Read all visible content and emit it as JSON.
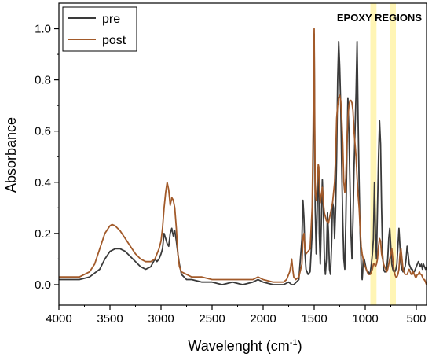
{
  "chart_data": {
    "type": "line",
    "title": "",
    "xlabel": "Wavelenght (cm",
    "xlabel_sup": "-1",
    "xlabel_end": ")",
    "ylabel": "Absorbance",
    "xlim": [
      4000,
      400
    ],
    "ylim": [
      -0.08,
      1.1
    ],
    "x_reversed": true,
    "grid": false,
    "legend_position": "top-left",
    "annotation": "EPOXY REGIONS",
    "highlight_color": "#fff3a8",
    "highlight_bands": [
      [
        950,
        890
      ],
      [
        760,
        700
      ]
    ],
    "x_ticks": [
      4000,
      3500,
      3000,
      2500,
      2000,
      1500,
      1000,
      500
    ],
    "y_ticks": [
      0.0,
      0.2,
      0.4,
      0.6,
      0.8,
      1.0
    ],
    "x_tick_labels": [
      "4000",
      "3500",
      "3000",
      "2500",
      "2000",
      "1500",
      "1000",
      "500"
    ],
    "y_tick_labels": [
      "0.0",
      "0.2",
      "0.4",
      "0.6",
      "0.8",
      "1.0"
    ],
    "series": [
      {
        "name": "pre",
        "color": "#3a3a3a",
        "x": [
          4000,
          3800,
          3700,
          3600,
          3550,
          3500,
          3450,
          3400,
          3350,
          3300,
          3250,
          3200,
          3150,
          3100,
          3060,
          3040,
          3020,
          3000,
          2985,
          2970,
          2955,
          2940,
          2925,
          2910,
          2895,
          2880,
          2865,
          2850,
          2835,
          2820,
          2800,
          2750,
          2700,
          2600,
          2500,
          2400,
          2300,
          2200,
          2100,
          2050,
          2000,
          1900,
          1800,
          1750,
          1720,
          1700,
          1650,
          1620,
          1610,
          1600,
          1590,
          1580,
          1560,
          1540,
          1520,
          1510,
          1505,
          1500,
          1495,
          1490,
          1480,
          1470,
          1460,
          1455,
          1450,
          1440,
          1430,
          1420,
          1410,
          1400,
          1390,
          1380,
          1370,
          1360,
          1350,
          1340,
          1330,
          1320,
          1310,
          1300,
          1290,
          1280,
          1270,
          1260,
          1250,
          1240,
          1230,
          1220,
          1210,
          1200,
          1190,
          1180,
          1170,
          1160,
          1150,
          1140,
          1130,
          1120,
          1110,
          1100,
          1090,
          1080,
          1070,
          1060,
          1050,
          1040,
          1035,
          1030,
          1025,
          1020,
          1010,
          1000,
          990,
          980,
          970,
          960,
          950,
          940,
          930,
          920,
          910,
          900,
          890,
          880,
          870,
          860,
          850,
          840,
          830,
          820,
          810,
          800,
          790,
          780,
          770,
          760,
          750,
          740,
          730,
          720,
          710,
          700,
          690,
          680,
          670,
          660,
          650,
          640,
          630,
          620,
          610,
          600,
          590,
          580,
          570,
          560,
          550,
          540,
          530,
          520,
          510,
          500,
          490,
          480,
          470,
          460,
          450,
          440,
          430,
          420,
          410,
          400
        ],
        "y": [
          0.02,
          0.02,
          0.03,
          0.06,
          0.1,
          0.13,
          0.14,
          0.14,
          0.13,
          0.11,
          0.09,
          0.07,
          0.06,
          0.07,
          0.1,
          0.09,
          0.1,
          0.12,
          0.14,
          0.2,
          0.18,
          0.16,
          0.15,
          0.2,
          0.22,
          0.19,
          0.21,
          0.17,
          0.12,
          0.08,
          0.04,
          0.02,
          0.02,
          0.01,
          0.01,
          0.0,
          0.01,
          0.0,
          0.01,
          0.02,
          0.01,
          0.0,
          0.0,
          0.01,
          0.0,
          0.0,
          0.02,
          0.18,
          0.33,
          0.26,
          0.12,
          0.06,
          0.04,
          0.05,
          0.2,
          0.5,
          0.75,
          0.98,
          0.62,
          0.3,
          0.12,
          0.3,
          0.46,
          0.4,
          0.2,
          0.08,
          0.24,
          0.41,
          0.3,
          0.1,
          0.04,
          0.1,
          0.28,
          0.2,
          0.06,
          0.04,
          0.15,
          0.32,
          0.3,
          0.18,
          0.3,
          0.5,
          0.8,
          0.95,
          0.85,
          0.7,
          0.45,
          0.25,
          0.1,
          0.06,
          0.25,
          0.5,
          0.73,
          0.6,
          0.4,
          0.2,
          0.1,
          0.25,
          0.45,
          0.6,
          0.75,
          0.95,
          0.65,
          0.4,
          0.2,
          0.08,
          0.04,
          0.02,
          0.05,
          0.1,
          0.1,
          0.08,
          0.06,
          0.05,
          0.05,
          0.04,
          0.05,
          0.08,
          0.12,
          0.18,
          0.4,
          0.2,
          0.1,
          0.3,
          0.5,
          0.64,
          0.55,
          0.3,
          0.12,
          0.06,
          0.05,
          0.05,
          0.06,
          0.1,
          0.18,
          0.22,
          0.15,
          0.08,
          0.06,
          0.05,
          0.05,
          0.06,
          0.08,
          0.15,
          0.22,
          0.15,
          0.08,
          0.06,
          0.05,
          0.06,
          0.07,
          0.1,
          0.15,
          0.12,
          0.08,
          0.07,
          0.06,
          0.06,
          0.05,
          0.05,
          0.06,
          0.07,
          0.08,
          0.09,
          0.08,
          0.07,
          0.08,
          0.06,
          0.08,
          0.07,
          0.06,
          0.07
        ]
      },
      {
        "name": "post",
        "color": "#a25a2a",
        "x": [
          4000,
          3800,
          3700,
          3650,
          3600,
          3550,
          3500,
          3480,
          3450,
          3400,
          3350,
          3300,
          3250,
          3200,
          3150,
          3100,
          3060,
          3040,
          3020,
          3000,
          2985,
          2970,
          2955,
          2940,
          2925,
          2910,
          2895,
          2880,
          2865,
          2850,
          2835,
          2820,
          2800,
          2750,
          2700,
          2600,
          2500,
          2400,
          2300,
          2200,
          2100,
          2050,
          2000,
          1900,
          1800,
          1770,
          1740,
          1730,
          1720,
          1710,
          1700,
          1680,
          1650,
          1620,
          1610,
          1600,
          1590,
          1580,
          1560,
          1540,
          1520,
          1510,
          1505,
          1500,
          1495,
          1490,
          1480,
          1470,
          1460,
          1455,
          1450,
          1440,
          1430,
          1420,
          1410,
          1400,
          1380,
          1360,
          1340,
          1320,
          1300,
          1290,
          1280,
          1270,
          1260,
          1250,
          1240,
          1230,
          1220,
          1210,
          1200,
          1190,
          1180,
          1170,
          1160,
          1150,
          1140,
          1130,
          1120,
          1110,
          1100,
          1090,
          1080,
          1070,
          1060,
          1050,
          1040,
          1030,
          1020,
          1010,
          1000,
          990,
          980,
          970,
          960,
          950,
          940,
          930,
          920,
          910,
          900,
          890,
          880,
          870,
          860,
          850,
          840,
          830,
          820,
          810,
          800,
          790,
          780,
          770,
          760,
          750,
          740,
          730,
          720,
          710,
          700,
          690,
          680,
          670,
          660,
          650,
          640,
          630,
          620,
          610,
          600,
          590,
          580,
          570,
          560,
          550,
          540,
          530,
          520,
          510,
          500,
          490,
          480,
          470,
          460,
          450,
          440,
          430,
          420,
          410,
          400
        ],
        "y": [
          0.03,
          0.03,
          0.05,
          0.08,
          0.14,
          0.2,
          0.23,
          0.235,
          0.23,
          0.21,
          0.18,
          0.15,
          0.12,
          0.1,
          0.09,
          0.09,
          0.1,
          0.12,
          0.14,
          0.17,
          0.22,
          0.3,
          0.36,
          0.4,
          0.37,
          0.31,
          0.34,
          0.33,
          0.3,
          0.22,
          0.12,
          0.07,
          0.05,
          0.04,
          0.03,
          0.03,
          0.02,
          0.02,
          0.02,
          0.02,
          0.02,
          0.03,
          0.02,
          0.01,
          0.01,
          0.02,
          0.05,
          0.07,
          0.1,
          0.06,
          0.03,
          0.02,
          0.03,
          0.08,
          0.18,
          0.2,
          0.14,
          0.12,
          0.13,
          0.14,
          0.3,
          0.6,
          0.85,
          1.0,
          0.7,
          0.36,
          0.33,
          0.4,
          0.47,
          0.46,
          0.4,
          0.32,
          0.35,
          0.38,
          0.32,
          0.28,
          0.25,
          0.24,
          0.28,
          0.32,
          0.4,
          0.5,
          0.65,
          0.7,
          0.73,
          0.74,
          0.72,
          0.65,
          0.55,
          0.4,
          0.36,
          0.42,
          0.55,
          0.65,
          0.7,
          0.72,
          0.72,
          0.71,
          0.68,
          0.6,
          0.55,
          0.5,
          0.42,
          0.35,
          0.3,
          0.22,
          0.15,
          0.12,
          0.1,
          0.08,
          0.07,
          0.06,
          0.05,
          0.04,
          0.04,
          0.04,
          0.05,
          0.06,
          0.08,
          0.08,
          0.07,
          0.08,
          0.1,
          0.15,
          0.18,
          0.17,
          0.12,
          0.1,
          0.08,
          0.07,
          0.06,
          0.05,
          0.06,
          0.08,
          0.1,
          0.12,
          0.14,
          0.1,
          0.06,
          0.04,
          0.03,
          0.03,
          0.04,
          0.06,
          0.12,
          0.14,
          0.1,
          0.06,
          0.05,
          0.04,
          0.04,
          0.04,
          0.05,
          0.06,
          0.05,
          0.04,
          0.04,
          0.05,
          0.04,
          0.03,
          0.03,
          0.04,
          0.04,
          0.05,
          0.04,
          0.04,
          0.03,
          0.02,
          0.02,
          0.01,
          0.0
        ]
      }
    ]
  }
}
